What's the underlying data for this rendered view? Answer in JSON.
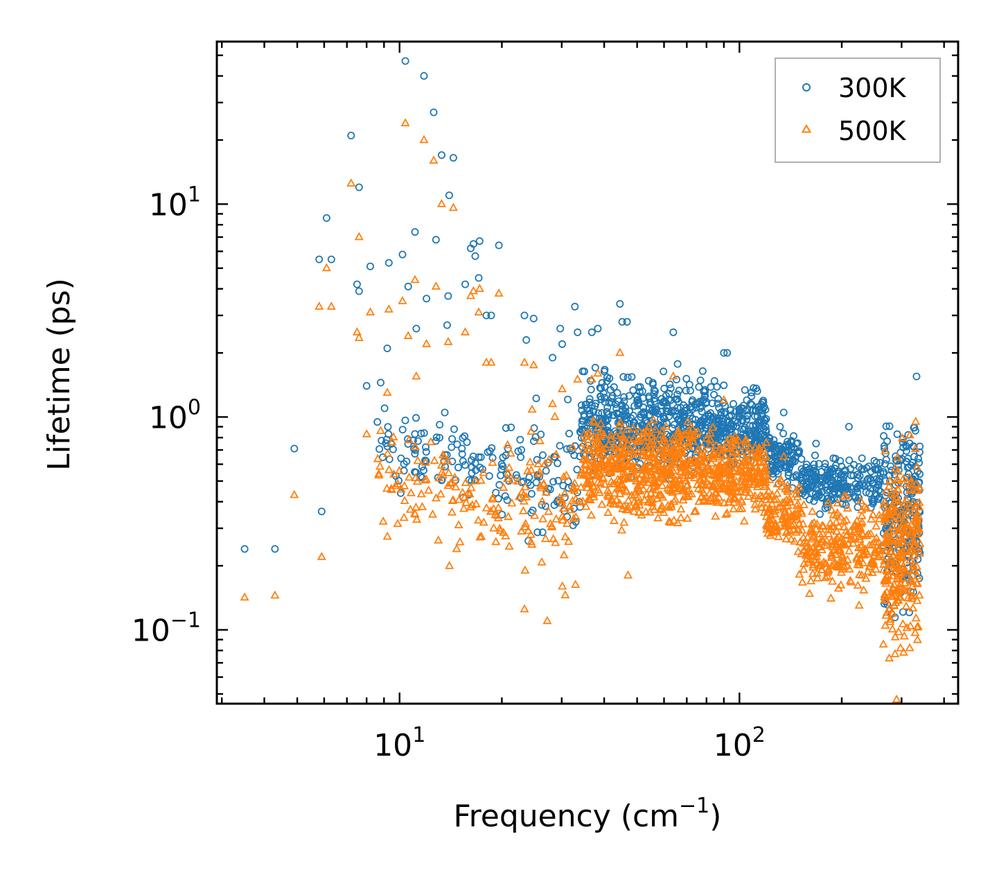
{
  "chart_data": {
    "type": "scatter",
    "xlabel": "Frequency (cm",
    "xlabel_sup": "−1",
    "xlabel_tail": ")",
    "ylabel": "Lifetime (ps)",
    "xscale": "log",
    "yscale": "log",
    "xlim": [
      2.9,
      440
    ],
    "ylim": [
      0.045,
      58
    ],
    "x_major_ticks": [
      {
        "value": 10,
        "base": "10",
        "exp": "1"
      },
      {
        "value": 100,
        "base": "10",
        "exp": "2"
      }
    ],
    "y_major_ticks": [
      {
        "value": 0.1,
        "base": "10",
        "exp": "−1"
      },
      {
        "value": 1,
        "base": "10",
        "exp": "0"
      },
      {
        "value": 10,
        "base": "10",
        "exp": "1"
      }
    ],
    "legend_position": "top-right",
    "series": [
      {
        "name": "300K",
        "marker": "circle",
        "color": "#1f77b4",
        "highlight_points": [
          [
            3.5,
            0.24
          ],
          [
            4.3,
            0.24
          ],
          [
            4.9,
            0.71
          ],
          [
            5.9,
            0.36
          ],
          [
            5.8,
            5.5
          ],
          [
            6.1,
            8.6
          ],
          [
            6.3,
            5.5
          ],
          [
            7.2,
            21
          ],
          [
            7.5,
            4.2
          ],
          [
            7.6,
            3.9
          ],
          [
            7.6,
            12
          ],
          [
            8.0,
            1.4
          ],
          [
            8.2,
            5.1
          ],
          [
            8.8,
            1.45
          ],
          [
            9.2,
            2.1
          ],
          [
            9.3,
            5.3
          ],
          [
            10.2,
            5.8
          ],
          [
            10.4,
            47
          ],
          [
            10.6,
            4.1
          ],
          [
            11.1,
            7.4
          ],
          [
            11.2,
            2.6
          ],
          [
            11.8,
            40
          ],
          [
            12.0,
            3.6
          ],
          [
            12.6,
            27
          ],
          [
            12.8,
            6.8
          ],
          [
            13.3,
            17
          ],
          [
            13.8,
            2.7
          ],
          [
            13.9,
            3.7
          ],
          [
            14.0,
            11
          ],
          [
            14.4,
            16.5
          ],
          [
            15.6,
            4.2
          ],
          [
            16.2,
            6.2
          ],
          [
            16.5,
            6.5
          ],
          [
            16.7,
            5.7
          ],
          [
            17.1,
            4.5
          ],
          [
            17.2,
            6.7
          ],
          [
            18.0,
            3.0
          ],
          [
            18.6,
            3.0
          ],
          [
            19.6,
            6.4
          ],
          [
            23.3,
            3.0
          ],
          [
            23.6,
            2.3
          ],
          [
            24.8,
            2.9
          ],
          [
            28.2,
            1.9
          ],
          [
            29.7,
            2.6
          ],
          [
            30.1,
            2.2
          ],
          [
            32.8,
            3.3
          ],
          [
            33.4,
            2.5
          ],
          [
            36.8,
            2.5
          ],
          [
            38.3,
            2.6
          ],
          [
            44.5,
            3.4
          ],
          [
            45.2,
            2.8
          ],
          [
            46.7,
            2.8
          ],
          [
            63.9,
            2.5
          ],
          [
            90.0,
            2.0
          ],
          [
            92.0,
            2.0
          ],
          [
            135,
            1.05
          ],
          [
            168,
            0.75
          ],
          [
            210,
            0.9
          ],
          [
            269,
            0.5
          ],
          [
            332,
            1.55
          ]
        ],
        "dense_bands": [
          {
            "x": [
              8.5,
              14
            ],
            "y": [
              0.38,
              1.2
            ],
            "count": 55
          },
          {
            "x": [
              14,
              20
            ],
            "y": [
              0.35,
              1.1
            ],
            "count": 40
          },
          {
            "x": [
              20,
              34
            ],
            "y": [
              0.2,
              1.6
            ],
            "count": 80
          },
          {
            "x": [
              34,
              80
            ],
            "y": [
              0.45,
              1.9
            ],
            "count": 520
          },
          {
            "x": [
              80,
              120
            ],
            "y": [
              0.5,
              1.6
            ],
            "count": 260
          },
          {
            "x": [
              120,
              150
            ],
            "y": [
              0.45,
              0.95
            ],
            "count": 110
          },
          {
            "x": [
              150,
              260
            ],
            "y": [
              0.32,
              0.72
            ],
            "count": 230
          },
          {
            "x": [
              265,
              340
            ],
            "y": [
              0.09,
              1.5
            ],
            "count": 230
          }
        ]
      },
      {
        "name": "500K",
        "marker": "triangle",
        "color": "#ff7f0e",
        "highlight_points": [
          [
            3.5,
            0.142
          ],
          [
            4.3,
            0.145
          ],
          [
            4.9,
            0.43
          ],
          [
            5.9,
            0.22
          ],
          [
            5.8,
            3.3
          ],
          [
            6.1,
            5.0
          ],
          [
            6.3,
            3.3
          ],
          [
            7.2,
            12.5
          ],
          [
            7.5,
            2.5
          ],
          [
            7.6,
            7.0
          ],
          [
            7.6,
            2.35
          ],
          [
            8.0,
            0.83
          ],
          [
            8.2,
            3.1
          ],
          [
            8.8,
            0.86
          ],
          [
            9.2,
            1.3
          ],
          [
            9.3,
            3.2
          ],
          [
            10.2,
            3.5
          ],
          [
            10.4,
            24
          ],
          [
            10.6,
            2.4
          ],
          [
            11.1,
            4.4
          ],
          [
            11.2,
            1.55
          ],
          [
            11.8,
            20
          ],
          [
            12.0,
            2.2
          ],
          [
            12.6,
            16
          ],
          [
            12.8,
            4.1
          ],
          [
            13.3,
            10
          ],
          [
            13.9,
            2.25
          ],
          [
            14.4,
            9.6
          ],
          [
            15.6,
            2.5
          ],
          [
            16.2,
            3.7
          ],
          [
            16.5,
            3.9
          ],
          [
            17.1,
            3.1
          ],
          [
            17.2,
            4.0
          ],
          [
            18.0,
            1.8
          ],
          [
            18.6,
            1.8
          ],
          [
            19.6,
            3.8
          ],
          [
            23.3,
            1.8
          ],
          [
            24.8,
            1.75
          ],
          [
            23.3,
            0.125
          ],
          [
            27.2,
            0.11
          ],
          [
            28.2,
            1.15
          ],
          [
            30.1,
            1.35
          ],
          [
            33.4,
            1.5
          ],
          [
            36.8,
            1.5
          ],
          [
            38.3,
            1.6
          ],
          [
            44.5,
            2.0
          ],
          [
            47.0,
            0.18
          ],
          [
            63.9,
            1.55
          ],
          [
            90.0,
            1.2
          ],
          [
            135,
            0.65
          ],
          [
            225,
            0.13
          ],
          [
            290,
            0.047
          ],
          [
            330,
            0.95
          ]
        ],
        "dense_bands": [
          {
            "x": [
              8.5,
              14
            ],
            "y": [
              0.22,
              0.95
            ],
            "count": 55
          },
          {
            "x": [
              14,
              20
            ],
            "y": [
              0.17,
              0.85
            ],
            "count": 45
          },
          {
            "x": [
              20,
              34
            ],
            "y": [
              0.13,
              1.2
            ],
            "count": 85
          },
          {
            "x": [
              34,
              80
            ],
            "y": [
              0.27,
              1.15
            ],
            "count": 560
          },
          {
            "x": [
              80,
              120
            ],
            "y": [
              0.3,
              0.95
            ],
            "count": 250
          },
          {
            "x": [
              120,
              150
            ],
            "y": [
              0.2,
              0.6
            ],
            "count": 110
          },
          {
            "x": [
              150,
              260
            ],
            "y": [
              0.12,
              0.5
            ],
            "count": 240
          },
          {
            "x": [
              265,
              340
            ],
            "y": [
              0.05,
              1.0
            ],
            "count": 260
          }
        ]
      }
    ]
  }
}
